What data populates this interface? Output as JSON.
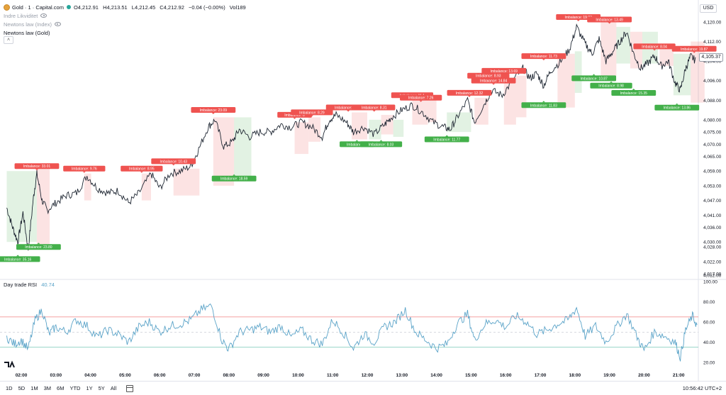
{
  "header": {
    "symbol": "Gold · 1 · Capital.com",
    "open": "O4,212.91",
    "high": "H4,213.51",
    "low": "L4,212.45",
    "close": "C4,212.92",
    "change": "−0.04 (−0.00%)",
    "volume": "Vol189",
    "indicators": [
      "Indre Likviditet",
      "Newtons law (Index)",
      "Newtons law (Gold)"
    ],
    "currency": "USD",
    "current_price": "4,105.37",
    "colors": {
      "up": "#26a69a",
      "down": "#ef5350",
      "candle": "#1f2733",
      "rsi": "#5aa3c8"
    }
  },
  "rsi": {
    "title": "Day trade RSI",
    "value": "40.74",
    "upper_level": 65,
    "lower_level": 35,
    "mid_level": 50
  },
  "bottom_bar": {
    "ranges": [
      "1D",
      "5D",
      "1M",
      "3M",
      "6M",
      "YTD",
      "1Y",
      "5Y",
      "All"
    ],
    "clock": "10:56:42 UTC+2"
  },
  "chart_data": {
    "type": "line",
    "price_ticks": [
      "4,120.00",
      "4,112.00",
      "4,104.00",
      "4,096.00",
      "4,088.00",
      "4,080.00",
      "4,075.00",
      "4,070.00",
      "4,065.00",
      "4,059.00",
      "4,053.00",
      "4,047.00",
      "4,041.00",
      "4,036.00",
      "4,030.00",
      "4,028.00",
      "4,022.00",
      "4,017.00",
      "4,012.00"
    ],
    "rsi_ticks": [
      "100.00",
      "80.00",
      "60.00",
      "40.00",
      "20.00"
    ],
    "time_ticks": [
      "02:00",
      "03:00",
      "04:00",
      "05:00",
      "06:00",
      "07:00",
      "08:00",
      "09:00",
      "10:00",
      "11:00",
      "12:00",
      "13:00",
      "14:00",
      "15:00",
      "16:00",
      "17:00",
      "18:00",
      "19:00",
      "20:00",
      "21:00"
    ],
    "x_range": [
      "01:35",
      "21:35"
    ],
    "y_range": [
      4010,
      4124
    ],
    "price_series": [
      {
        "t": 1.58,
        "v": 4044
      },
      {
        "t": 1.75,
        "v": 4036
      },
      {
        "t": 1.9,
        "v": 4030
      },
      {
        "t": 2.05,
        "v": 4042
      },
      {
        "t": 2.2,
        "v": 4027
      },
      {
        "t": 2.35,
        "v": 4048
      },
      {
        "t": 2.45,
        "v": 4058
      },
      {
        "t": 2.6,
        "v": 4047
      },
      {
        "t": 2.75,
        "v": 4043
      },
      {
        "t": 3.0,
        "v": 4046
      },
      {
        "t": 3.3,
        "v": 4049
      },
      {
        "t": 3.6,
        "v": 4050
      },
      {
        "t": 3.9,
        "v": 4057
      },
      {
        "t": 4.2,
        "v": 4052
      },
      {
        "t": 4.5,
        "v": 4050
      },
      {
        "t": 4.8,
        "v": 4051
      },
      {
        "t": 5.1,
        "v": 4046
      },
      {
        "t": 5.4,
        "v": 4050
      },
      {
        "t": 5.75,
        "v": 4058
      },
      {
        "t": 6.0,
        "v": 4052
      },
      {
        "t": 6.3,
        "v": 4058
      },
      {
        "t": 6.6,
        "v": 4059
      },
      {
        "t": 6.9,
        "v": 4061
      },
      {
        "t": 7.1,
        "v": 4067
      },
      {
        "t": 7.4,
        "v": 4077
      },
      {
        "t": 7.6,
        "v": 4080
      },
      {
        "t": 7.85,
        "v": 4069
      },
      {
        "t": 8.1,
        "v": 4071
      },
      {
        "t": 8.3,
        "v": 4076
      },
      {
        "t": 8.6,
        "v": 4073
      },
      {
        "t": 8.9,
        "v": 4075
      },
      {
        "t": 9.2,
        "v": 4075
      },
      {
        "t": 9.5,
        "v": 4078
      },
      {
        "t": 9.8,
        "v": 4077
      },
      {
        "t": 10.1,
        "v": 4079
      },
      {
        "t": 10.4,
        "v": 4077
      },
      {
        "t": 10.7,
        "v": 4073
      },
      {
        "t": 10.9,
        "v": 4080
      },
      {
        "t": 11.1,
        "v": 4082
      },
      {
        "t": 11.4,
        "v": 4079
      },
      {
        "t": 11.6,
        "v": 4075
      },
      {
        "t": 11.9,
        "v": 4077
      },
      {
        "t": 12.2,
        "v": 4074
      },
      {
        "t": 12.5,
        "v": 4078
      },
      {
        "t": 12.7,
        "v": 4081
      },
      {
        "t": 13.0,
        "v": 4084
      },
      {
        "t": 13.3,
        "v": 4086
      },
      {
        "t": 13.6,
        "v": 4083
      },
      {
        "t": 13.9,
        "v": 4079
      },
      {
        "t": 14.2,
        "v": 4077
      },
      {
        "t": 14.4,
        "v": 4076
      },
      {
        "t": 14.6,
        "v": 4081
      },
      {
        "t": 14.9,
        "v": 4088
      },
      {
        "t": 15.1,
        "v": 4079
      },
      {
        "t": 15.4,
        "v": 4087
      },
      {
        "t": 15.6,
        "v": 4092
      },
      {
        "t": 15.9,
        "v": 4090
      },
      {
        "t": 16.2,
        "v": 4096
      },
      {
        "t": 16.5,
        "v": 4101
      },
      {
        "t": 16.7,
        "v": 4097
      },
      {
        "t": 16.9,
        "v": 4099
      },
      {
        "t": 17.1,
        "v": 4094
      },
      {
        "t": 17.3,
        "v": 4100
      },
      {
        "t": 17.6,
        "v": 4104
      },
      {
        "t": 17.85,
        "v": 4109
      },
      {
        "t": 18.05,
        "v": 4118
      },
      {
        "t": 18.3,
        "v": 4111
      },
      {
        "t": 18.5,
        "v": 4107
      },
      {
        "t": 18.7,
        "v": 4113
      },
      {
        "t": 18.9,
        "v": 4104
      },
      {
        "t": 19.1,
        "v": 4108
      },
      {
        "t": 19.3,
        "v": 4112
      },
      {
        "t": 19.5,
        "v": 4116
      },
      {
        "t": 19.7,
        "v": 4107
      },
      {
        "t": 19.9,
        "v": 4101
      },
      {
        "t": 20.1,
        "v": 4103
      },
      {
        "t": 20.3,
        "v": 4106
      },
      {
        "t": 20.5,
        "v": 4102
      },
      {
        "t": 20.7,
        "v": 4104
      },
      {
        "t": 20.9,
        "v": 4095
      },
      {
        "t": 21.05,
        "v": 4092
      },
      {
        "t": 21.2,
        "v": 4101
      },
      {
        "t": 21.35,
        "v": 4106
      },
      {
        "t": 21.5,
        "v": 4104
      }
    ],
    "rsi_series": [
      {
        "t": 1.58,
        "v": 45
      },
      {
        "t": 1.8,
        "v": 38
      },
      {
        "t": 2.0,
        "v": 42
      },
      {
        "t": 2.2,
        "v": 33
      },
      {
        "t": 2.4,
        "v": 62
      },
      {
        "t": 2.6,
        "v": 72
      },
      {
        "t": 2.8,
        "v": 48
      },
      {
        "t": 3.0,
        "v": 55
      },
      {
        "t": 3.3,
        "v": 50
      },
      {
        "t": 3.6,
        "v": 62
      },
      {
        "t": 3.9,
        "v": 56
      },
      {
        "t": 4.2,
        "v": 45
      },
      {
        "t": 4.5,
        "v": 52
      },
      {
        "t": 4.8,
        "v": 48
      },
      {
        "t": 5.1,
        "v": 40
      },
      {
        "t": 5.4,
        "v": 55
      },
      {
        "t": 5.7,
        "v": 60
      },
      {
        "t": 6.0,
        "v": 50
      },
      {
        "t": 6.3,
        "v": 56
      },
      {
        "t": 6.6,
        "v": 58
      },
      {
        "t": 6.9,
        "v": 62
      },
      {
        "t": 7.2,
        "v": 72
      },
      {
        "t": 7.5,
        "v": 76
      },
      {
        "t": 7.8,
        "v": 42
      },
      {
        "t": 8.0,
        "v": 33
      },
      {
        "t": 8.3,
        "v": 50
      },
      {
        "t": 8.6,
        "v": 52
      },
      {
        "t": 8.9,
        "v": 55
      },
      {
        "t": 9.2,
        "v": 50
      },
      {
        "t": 9.5,
        "v": 56
      },
      {
        "t": 9.8,
        "v": 45
      },
      {
        "t": 10.1,
        "v": 52
      },
      {
        "t": 10.4,
        "v": 42
      },
      {
        "t": 10.7,
        "v": 38
      },
      {
        "t": 11.0,
        "v": 62
      },
      {
        "t": 11.3,
        "v": 50
      },
      {
        "t": 11.6,
        "v": 34
      },
      {
        "t": 11.9,
        "v": 48
      },
      {
        "t": 12.2,
        "v": 40
      },
      {
        "t": 12.5,
        "v": 55
      },
      {
        "t": 12.8,
        "v": 60
      },
      {
        "t": 13.1,
        "v": 72
      },
      {
        "t": 13.4,
        "v": 50
      },
      {
        "t": 13.7,
        "v": 42
      },
      {
        "t": 14.0,
        "v": 34
      },
      {
        "t": 14.3,
        "v": 38
      },
      {
        "t": 14.6,
        "v": 58
      },
      {
        "t": 14.9,
        "v": 68
      },
      {
        "t": 15.1,
        "v": 42
      },
      {
        "t": 15.4,
        "v": 58
      },
      {
        "t": 15.7,
        "v": 62
      },
      {
        "t": 16.0,
        "v": 55
      },
      {
        "t": 16.3,
        "v": 66
      },
      {
        "t": 16.6,
        "v": 60
      },
      {
        "t": 16.9,
        "v": 48
      },
      {
        "t": 17.2,
        "v": 52
      },
      {
        "t": 17.5,
        "v": 58
      },
      {
        "t": 17.8,
        "v": 62
      },
      {
        "t": 18.05,
        "v": 74
      },
      {
        "t": 18.3,
        "v": 46
      },
      {
        "t": 18.6,
        "v": 56
      },
      {
        "t": 18.9,
        "v": 40
      },
      {
        "t": 19.2,
        "v": 55
      },
      {
        "t": 19.5,
        "v": 68
      },
      {
        "t": 19.8,
        "v": 45
      },
      {
        "t": 20.0,
        "v": 32
      },
      {
        "t": 20.3,
        "v": 50
      },
      {
        "t": 20.6,
        "v": 46
      },
      {
        "t": 20.9,
        "v": 40
      },
      {
        "t": 21.05,
        "v": 25
      },
      {
        "t": 21.2,
        "v": 52
      },
      {
        "t": 21.4,
        "v": 66
      },
      {
        "t": 21.55,
        "v": 55
      }
    ],
    "imbalance_zones": [
      {
        "type": "buy",
        "t0": 1.58,
        "t1": 2.45,
        "top": 4059,
        "bottom": 4030
      },
      {
        "type": "sell",
        "t0": 2.45,
        "t1": 2.82,
        "top": 4060,
        "bottom": 4029
      },
      {
        "type": "sell",
        "t0": 3.82,
        "t1": 4.02,
        "top": 4058,
        "bottom": 4047
      },
      {
        "type": "sell",
        "t0": 5.48,
        "t1": 5.75,
        "top": 4058,
        "bottom": 4047
      },
      {
        "type": "sell",
        "t0": 6.4,
        "t1": 7.15,
        "top": 4060,
        "bottom": 4049
      },
      {
        "type": "sell",
        "t0": 7.55,
        "t1": 8.15,
        "top": 4081,
        "bottom": 4053
      },
      {
        "type": "buy",
        "t0": 8.15,
        "t1": 8.65,
        "top": 4081,
        "bottom": 4057
      },
      {
        "type": "sell",
        "t0": 9.9,
        "t1": 10.3,
        "top": 4079,
        "bottom": 4066
      },
      {
        "type": "sell",
        "t0": 10.3,
        "t1": 10.65,
        "top": 4081,
        "bottom": 4071
      },
      {
        "type": "sell",
        "t0": 11.55,
        "t1": 12.0,
        "top": 4083,
        "bottom": 4072
      },
      {
        "type": "buy",
        "t0": 12.05,
        "t1": 12.4,
        "top": 4080,
        "bottom": 4072
      },
      {
        "type": "sell",
        "t0": 12.4,
        "t1": 12.75,
        "top": 4082,
        "bottom": 4074
      },
      {
        "type": "buy",
        "t0": 12.75,
        "t1": 13.05,
        "top": 4080,
        "bottom": 4073
      },
      {
        "type": "sell",
        "t0": 13.3,
        "t1": 13.75,
        "top": 4088,
        "bottom": 4078
      },
      {
        "type": "sell",
        "t0": 13.75,
        "t1": 14.0,
        "top": 4089,
        "bottom": 4079
      },
      {
        "type": "buy",
        "t0": 14.3,
        "t1": 15.0,
        "top": 4083,
        "bottom": 4075
      },
      {
        "type": "sell",
        "t0": 15.1,
        "t1": 15.5,
        "top": 4089,
        "bottom": 4078
      },
      {
        "type": "sell",
        "t0": 15.95,
        "t1": 16.3,
        "top": 4095,
        "bottom": 4078
      },
      {
        "type": "sell",
        "t0": 16.3,
        "t1": 16.6,
        "top": 4098,
        "bottom": 4081
      },
      {
        "type": "sell",
        "t0": 17.5,
        "t1": 18.0,
        "top": 4107,
        "bottom": 4085
      },
      {
        "type": "buy",
        "t0": 18.0,
        "t1": 18.2,
        "top": 4108,
        "bottom": 4091
      },
      {
        "type": "sell",
        "t0": 18.75,
        "t1": 19.2,
        "top": 4120,
        "bottom": 4098
      },
      {
        "type": "buy",
        "t0": 19.2,
        "t1": 19.6,
        "top": 4118,
        "bottom": 4103
      },
      {
        "type": "sell",
        "t0": 19.6,
        "t1": 19.95,
        "top": 4116,
        "bottom": 4101
      },
      {
        "type": "buy",
        "t0": 19.95,
        "t1": 20.4,
        "top": 4116,
        "bottom": 4103
      },
      {
        "type": "sell",
        "t0": 20.45,
        "t1": 20.85,
        "top": 4111,
        "bottom": 4102
      },
      {
        "type": "buy",
        "t0": 20.85,
        "t1": 21.35,
        "top": 4107,
        "bottom": 4090
      },
      {
        "type": "sell",
        "t0": 21.35,
        "t1": 21.75,
        "top": 4112,
        "bottom": 4087
      }
    ],
    "imbalance_labels": [
      {
        "type": "sell",
        "t": 2.45,
        "v": 4059,
        "text": "Imbalance: 33.01"
      },
      {
        "type": "buy",
        "t": 2.5,
        "v": 4030,
        "text": "Imbalance: 23.80"
      },
      {
        "type": "buy",
        "t": 1.9,
        "v": 4025,
        "text": "Imbalance: 35.16"
      },
      {
        "type": "sell",
        "t": 3.82,
        "v": 4058,
        "text": "Imbalance: 9.76"
      },
      {
        "type": "sell",
        "t": 5.48,
        "v": 4058,
        "text": "Imbalance: 8.95"
      },
      {
        "type": "sell",
        "t": 6.4,
        "v": 4061,
        "text": "Imbalance: 10.43"
      },
      {
        "type": "sell",
        "t": 7.55,
        "v": 4082,
        "text": "Imbalance: 23.09"
      },
      {
        "type": "buy",
        "t": 8.15,
        "v": 4058,
        "text": "Imbalance: 18.59"
      },
      {
        "type": "sell",
        "t": 9.9,
        "v": 4080,
        "text": "Imbalance: 8"
      },
      {
        "type": "sell",
        "t": 10.4,
        "v": 4081,
        "text": "Imbalance: 8.29"
      },
      {
        "type": "sell",
        "t": 11.45,
        "v": 4083,
        "text": "Imbalance: 13.65"
      },
      {
        "type": "buy",
        "t": 11.7,
        "v": 4072,
        "text": "Imbalance: 5"
      },
      {
        "type": "sell",
        "t": 12.2,
        "v": 4083,
        "text": "Imbalance: 8.31"
      },
      {
        "type": "buy",
        "t": 12.4,
        "v": 4072,
        "text": "Imbalance: 8.03"
      },
      {
        "type": "sell",
        "t": 13.3,
        "v": 4088,
        "text": "Imbalance: 11.1"
      },
      {
        "type": "sell",
        "t": 13.55,
        "v": 4087,
        "text": "Imbalance: 7.26"
      },
      {
        "type": "buy",
        "t": 14.3,
        "v": 4074,
        "text": "Imbalance: 11.77"
      },
      {
        "type": "sell",
        "t": 14.95,
        "v": 4089,
        "text": "Imbalance: 12.32"
      },
      {
        "type": "sell",
        "t": 15.65,
        "v": 4094,
        "text": "Imbalance: 14.84"
      },
      {
        "type": "sell",
        "t": 15.5,
        "v": 4096,
        "text": "Imbalance: 8.93"
      },
      {
        "type": "sell",
        "t": 15.95,
        "v": 4098,
        "text": "Imbalance: 13.69"
      },
      {
        "type": "sell",
        "t": 17.1,
        "v": 4104,
        "text": "Imbalance: 11.73"
      },
      {
        "type": "buy",
        "t": 17.1,
        "v": 4088,
        "text": "Imbalance: 11.83"
      },
      {
        "type": "sell",
        "t": 18.1,
        "v": 4120,
        "text": "Imbalance: 19.03"
      },
      {
        "type": "buy",
        "t": 18.55,
        "v": 4099,
        "text": "Imbalance: 10.87"
      },
      {
        "type": "sell",
        "t": 19.0,
        "v": 4119,
        "text": "Imbalance: 13.49"
      },
      {
        "type": "buy",
        "t": 19.05,
        "v": 4096,
        "text": "Imbalance: 8.98"
      },
      {
        "type": "buy",
        "t": 19.7,
        "v": 4093,
        "text": "Imbalance: 15.35"
      },
      {
        "type": "sell",
        "t": 20.3,
        "v": 4108,
        "text": "Imbalance: 8.04"
      },
      {
        "type": "sell",
        "t": 21.45,
        "v": 4107,
        "text": "Imbalance: 19.87"
      },
      {
        "type": "buy",
        "t": 20.95,
        "v": 4087,
        "text": "Imbalance: 13.86"
      }
    ]
  }
}
